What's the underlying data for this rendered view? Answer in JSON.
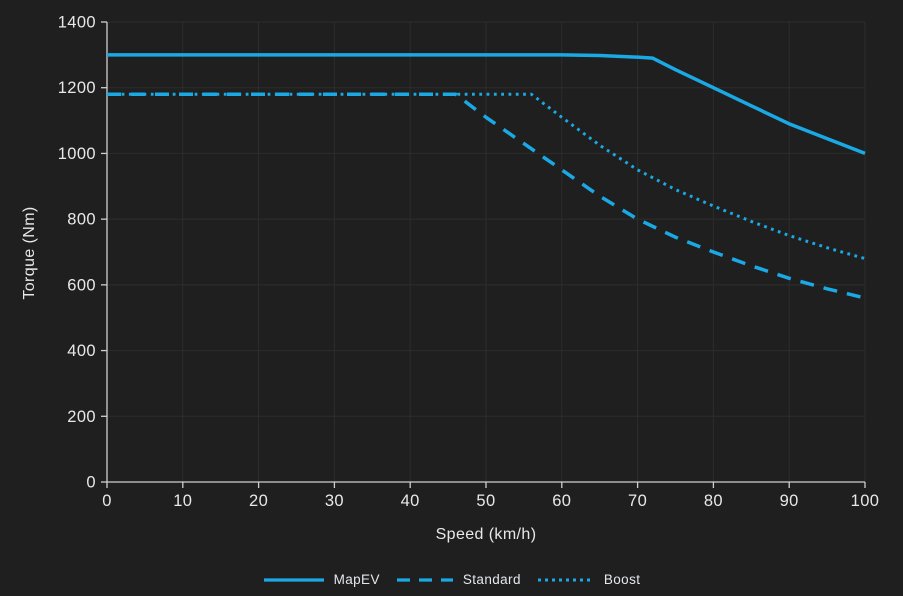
{
  "figure": {
    "background": "#1f1f1f",
    "grid_color": "#2d2d2d",
    "axis_color": "#cfcfcf",
    "text_color": "#e8e8e8",
    "accent": "#1aa9e4"
  },
  "chart_data": {
    "type": "line",
    "title": "",
    "xlabel": "Speed (km/h)",
    "ylabel": "Torque (Nm)",
    "xlim": [
      0,
      100
    ],
    "ylim": [
      0,
      1400
    ],
    "xticks": [
      0,
      10,
      20,
      30,
      40,
      50,
      60,
      70,
      80,
      90,
      100
    ],
    "yticks": [
      0,
      200,
      400,
      600,
      800,
      1000,
      1200,
      1400
    ],
    "grid": true,
    "legend_position": "bottom",
    "series": [
      {
        "name": "MapEV",
        "style": "solid",
        "color": "#1aa9e4",
        "x": [
          0,
          10,
          20,
          30,
          40,
          50,
          60,
          65,
          70,
          72,
          75,
          80,
          85,
          90,
          95,
          100
        ],
        "y": [
          1300,
          1300,
          1300,
          1300,
          1300,
          1300,
          1300,
          1298,
          1293,
          1290,
          1255,
          1200,
          1145,
          1090,
          1045,
          1000
        ]
      },
      {
        "name": "Standard",
        "style": "dashed",
        "color": "#1aa9e4",
        "x": [
          0,
          10,
          20,
          30,
          40,
          46,
          50,
          55,
          60,
          65,
          70,
          75,
          80,
          85,
          90,
          95,
          100
        ],
        "y": [
          1180,
          1180,
          1180,
          1180,
          1180,
          1180,
          1110,
          1030,
          950,
          870,
          800,
          745,
          700,
          658,
          620,
          588,
          560
        ]
      },
      {
        "name": "Boost",
        "style": "dotted",
        "color": "#1aa9e4",
        "x": [
          0,
          10,
          20,
          30,
          40,
          50,
          56,
          60,
          65,
          70,
          75,
          80,
          85,
          90,
          95,
          100
        ],
        "y": [
          1180,
          1180,
          1180,
          1180,
          1180,
          1180,
          1180,
          1110,
          1025,
          950,
          890,
          840,
          793,
          750,
          713,
          680
        ]
      }
    ]
  }
}
